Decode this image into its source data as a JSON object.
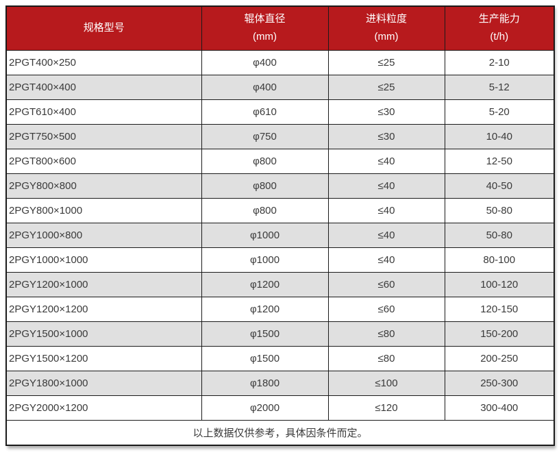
{
  "chart_data": {
    "type": "table",
    "columns": [
      {
        "title": "规格型号",
        "unit": ""
      },
      {
        "title": "辊体直径",
        "unit": "(mm)"
      },
      {
        "title": "进料粒度",
        "unit": "(mm)"
      },
      {
        "title": "生产能力",
        "unit": "(t/h)"
      }
    ],
    "rows": [
      [
        "2PGT400×250",
        "φ400",
        "≤25",
        "2-10"
      ],
      [
        "2PGT400×400",
        "φ400",
        "≤25",
        "5-12"
      ],
      [
        "2PGT610×400",
        "φ610",
        "≤30",
        "5-20"
      ],
      [
        "2PGT750×500",
        "φ750",
        "≤30",
        "10-40"
      ],
      [
        "2PGT800×600",
        "φ800",
        "≤40",
        "12-50"
      ],
      [
        "2PGY800×800",
        "φ800",
        "≤40",
        "40-50"
      ],
      [
        "2PGY800×1000",
        "φ800",
        "≤40",
        "50-80"
      ],
      [
        "2PGY1000×800",
        "φ1000",
        "≤40",
        "50-80"
      ],
      [
        "2PGY1000×1000",
        "φ1000",
        "≤40",
        "80-100"
      ],
      [
        "2PGY1200×1000",
        "φ1200",
        "≤60",
        "100-120"
      ],
      [
        "2PGY1200×1200",
        "φ1200",
        "≤60",
        "120-150"
      ],
      [
        "2PGY1500×1000",
        "φ1500",
        "≤80",
        "150-200"
      ],
      [
        "2PGY1500×1200",
        "φ1500",
        "≤80",
        "200-250"
      ],
      [
        "2PGY1800×1000",
        "φ1800",
        "≤100",
        "250-300"
      ],
      [
        "2PGY2000×1200",
        "φ2000",
        "≤120",
        "300-400"
      ]
    ],
    "footer_note": "以上数据仅供参考，具体因条件而定。",
    "layout_hints": {
      "striped": true,
      "header_rows": 1,
      "footer_rows": 1
    }
  },
  "colors": {
    "header_bg": "#b71a1d",
    "header_text": "#ffffff",
    "row_alt_bg": "#e0e0e0",
    "body_text": "#3a3a3a",
    "border": "#1a1a1a",
    "page_bg": "#ffffff"
  }
}
